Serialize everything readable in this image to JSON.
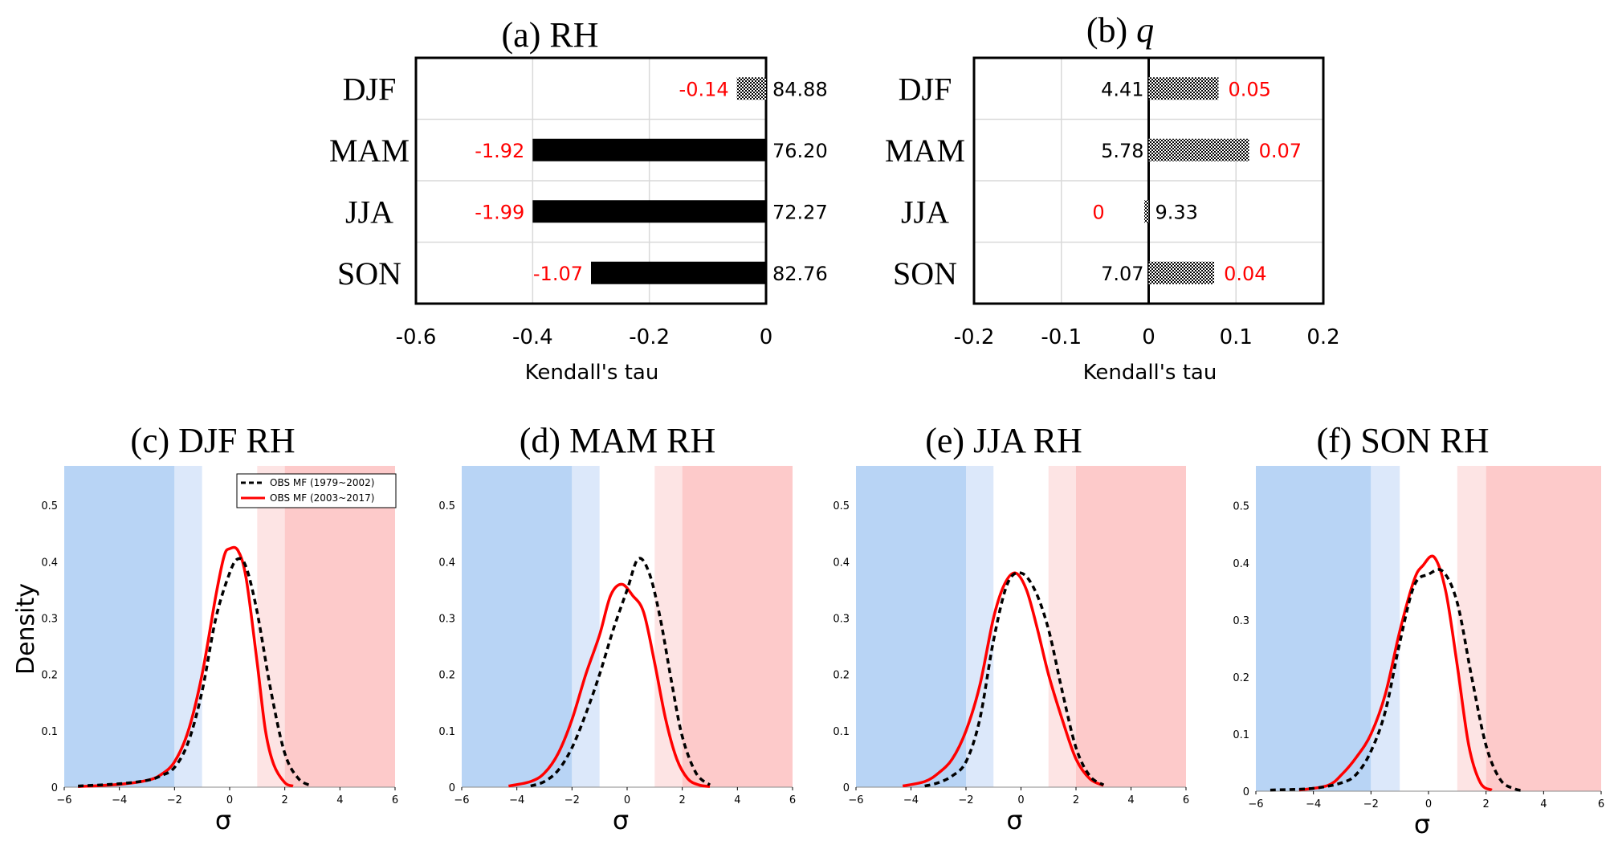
{
  "panel_a": {
    "title": "(a) RH",
    "xlabel": "Kendall's tau",
    "categories": [
      "DJF",
      "MAM",
      "JJA",
      "SON"
    ],
    "tau": [
      -0.05,
      -0.4,
      -0.4,
      -0.3
    ],
    "bar_style": [
      "hatched",
      "solid",
      "solid",
      "solid"
    ],
    "trend_labels": [
      "-0.14",
      "-1.92",
      "-1.99",
      "-1.07"
    ],
    "means": [
      "84.88",
      "76.20",
      "72.27",
      "82.76"
    ],
    "xlim": [
      -0.6,
      0
    ],
    "xticks": [
      -0.6,
      -0.4,
      -0.2,
      0
    ],
    "xtick_labels": [
      "-0.6",
      "-0.4",
      "-0.2",
      "0"
    ]
  },
  "panel_b": {
    "title_prefix": "(b) ",
    "title_var": "q",
    "xlabel": "Kendall's tau",
    "categories": [
      "DJF",
      "MAM",
      "JJA",
      "SON"
    ],
    "tau": [
      0.08,
      0.115,
      -0.005,
      0.075
    ],
    "bar_style": [
      "hatched",
      "hatched",
      "hatched",
      "hatched"
    ],
    "trend_labels": [
      "0.05",
      "0.07",
      "0",
      "0.04"
    ],
    "means": [
      "4.41",
      "5.78",
      "9.33",
      "7.07"
    ],
    "xlim": [
      -0.2,
      0.2
    ],
    "xticks": [
      -0.2,
      -0.1,
      0,
      0.1,
      0.2
    ],
    "xtick_labels": [
      "-0.2",
      "-0.1",
      "0",
      "0.1",
      "0.2"
    ]
  },
  "colors": {
    "trend_text": "#ff0000",
    "value_text": "#000000",
    "bar": "#000000",
    "obs_late": "#ff0000",
    "obs_early": "#000000",
    "blue_dark": "#b8d4f5",
    "blue_light": "#dce8fa",
    "red_dark": "#fdcaca",
    "red_light": "#fde4e4"
  },
  "density": {
    "ylabel": "Density",
    "xlabel": "σ",
    "xlim": [
      -6,
      6
    ],
    "ylim": [
      0,
      0.57
    ],
    "xticks": [
      -6,
      -4,
      -2,
      0,
      2,
      4,
      6
    ],
    "xtick_labels": [
      "−6",
      "−4",
      "−2",
      "0",
      "2",
      "4",
      "6"
    ],
    "yticks": [
      0,
      0.1,
      0.2,
      0.3,
      0.4,
      0.5
    ],
    "ytick_labels": [
      "0",
      "0.1",
      "0.2",
      "0.3",
      "0.4",
      "0.5"
    ],
    "legend": [
      "OBS MF (1979~2002)",
      "OBS MF (2003~2017)"
    ]
  },
  "chart_data": [
    {
      "type": "bar",
      "title": "(a) RH",
      "categories": [
        "DJF",
        "MAM",
        "JJA",
        "SON"
      ],
      "series": [
        {
          "name": "Kendall's tau",
          "values": [
            -0.05,
            -0.4,
            -0.4,
            -0.3
          ]
        }
      ],
      "xlabel": "Kendall's tau",
      "xlim": [
        -0.6,
        0
      ]
    },
    {
      "type": "bar",
      "title": "(b) q",
      "categories": [
        "DJF",
        "MAM",
        "JJA",
        "SON"
      ],
      "series": [
        {
          "name": "Kendall's tau",
          "values": [
            0.08,
            0.115,
            -0.005,
            0.075
          ]
        }
      ],
      "xlabel": "Kendall's tau",
      "xlim": [
        -0.2,
        0.2
      ]
    },
    {
      "type": "line",
      "title": "(c) DJF RH",
      "xlabel": "σ",
      "ylabel": "Density",
      "xlim": [
        -6,
        6
      ],
      "ylim": [
        0,
        0.57
      ],
      "series": [
        {
          "name": "OBS MF (1979~2002)",
          "x": [
            -5.5,
            -4,
            -3,
            -2.5,
            -2,
            -1.5,
            -1,
            -0.5,
            0,
            0.3,
            0.6,
            1,
            1.5,
            2,
            2.5,
            3
          ],
          "y": [
            0.002,
            0.006,
            0.012,
            0.02,
            0.035,
            0.08,
            0.17,
            0.3,
            0.38,
            0.405,
            0.39,
            0.31,
            0.17,
            0.06,
            0.015,
            0.002
          ]
        },
        {
          "name": "OBS MF (2003~2017)",
          "x": [
            -5.5,
            -4,
            -3,
            -2.5,
            -2,
            -1.5,
            -1,
            -0.5,
            -0.2,
            0,
            0.3,
            0.6,
            1,
            1.3,
            1.6,
            2,
            2.3
          ],
          "y": [
            0.001,
            0.005,
            0.012,
            0.022,
            0.045,
            0.1,
            0.2,
            0.34,
            0.41,
            0.423,
            0.42,
            0.37,
            0.22,
            0.1,
            0.04,
            0.008,
            0.002
          ]
        }
      ]
    },
    {
      "type": "line",
      "title": "(d) MAM RH",
      "xlabel": "σ",
      "ylabel": "Density",
      "xlim": [
        -6,
        6
      ],
      "ylim": [
        0,
        0.57
      ],
      "series": [
        {
          "name": "OBS MF (1979~2002)",
          "x": [
            -3.5,
            -3,
            -2.5,
            -2,
            -1.5,
            -1,
            -0.5,
            0,
            0.4,
            0.8,
            1.2,
            1.6,
            2,
            2.5,
            3
          ],
          "y": [
            0.002,
            0.01,
            0.03,
            0.07,
            0.13,
            0.2,
            0.28,
            0.35,
            0.405,
            0.38,
            0.3,
            0.19,
            0.09,
            0.025,
            0.004
          ]
        },
        {
          "name": "OBS MF (2003~2017)",
          "x": [
            -4.3,
            -3.5,
            -3,
            -2.5,
            -2,
            -1.5,
            -1,
            -0.6,
            -0.2,
            0.2,
            0.6,
            1,
            1.4,
            1.8,
            2.2,
            2.6,
            3
          ],
          "y": [
            0.002,
            0.01,
            0.025,
            0.06,
            0.12,
            0.2,
            0.27,
            0.34,
            0.36,
            0.34,
            0.31,
            0.22,
            0.12,
            0.05,
            0.015,
            0.004,
            0.001
          ]
        }
      ]
    },
    {
      "type": "line",
      "title": "(e) JJA RH",
      "xlabel": "σ",
      "ylabel": "Density",
      "xlim": [
        -6,
        6
      ],
      "ylim": [
        0,
        0.57
      ],
      "series": [
        {
          "name": "OBS MF (1979~2002)",
          "x": [
            -3.5,
            -3,
            -2.5,
            -2,
            -1.5,
            -1,
            -0.5,
            0,
            0.5,
            1,
            1.5,
            2,
            2.5,
            3
          ],
          "y": [
            0.002,
            0.008,
            0.02,
            0.045,
            0.12,
            0.26,
            0.36,
            0.38,
            0.35,
            0.28,
            0.17,
            0.07,
            0.02,
            0.004
          ]
        },
        {
          "name": "OBS MF (2003~2017)",
          "x": [
            -4.3,
            -3.5,
            -3,
            -2.5,
            -2,
            -1.5,
            -1,
            -0.6,
            -0.2,
            0.2,
            0.6,
            1,
            1.5,
            2,
            2.5,
            3
          ],
          "y": [
            0.002,
            0.01,
            0.025,
            0.05,
            0.1,
            0.18,
            0.3,
            0.36,
            0.38,
            0.35,
            0.28,
            0.2,
            0.12,
            0.05,
            0.015,
            0.003
          ]
        }
      ]
    },
    {
      "type": "line",
      "title": "(f) SON RH",
      "xlabel": "σ",
      "ylabel": "Density",
      "xlim": [
        -6,
        6
      ],
      "ylim": [
        0,
        0.57
      ],
      "series": [
        {
          "name": "OBS MF (1979~2002)",
          "x": [
            -5.5,
            -4,
            -3,
            -2.5,
            -2,
            -1.5,
            -1,
            -0.5,
            0,
            0.5,
            1,
            1.5,
            2,
            2.5,
            3,
            3.3
          ],
          "y": [
            0.002,
            0.005,
            0.015,
            0.03,
            0.07,
            0.14,
            0.26,
            0.36,
            0.38,
            0.385,
            0.33,
            0.2,
            0.08,
            0.02,
            0.004,
            0.001
          ]
        },
        {
          "name": "OBS MF (2003~2017)",
          "x": [
            -4.5,
            -3.5,
            -3,
            -2.5,
            -2,
            -1.5,
            -1,
            -0.5,
            -0.2,
            0.2,
            0.6,
            1,
            1.4,
            1.8,
            2.2
          ],
          "y": [
            0.002,
            0.01,
            0.03,
            0.06,
            0.1,
            0.17,
            0.28,
            0.37,
            0.395,
            0.41,
            0.35,
            0.22,
            0.08,
            0.015,
            0.002
          ]
        }
      ]
    }
  ],
  "density_titles": [
    "(c) DJF RH",
    "(d) MAM RH",
    "(e) JJA RH",
    "(f) SON RH"
  ]
}
